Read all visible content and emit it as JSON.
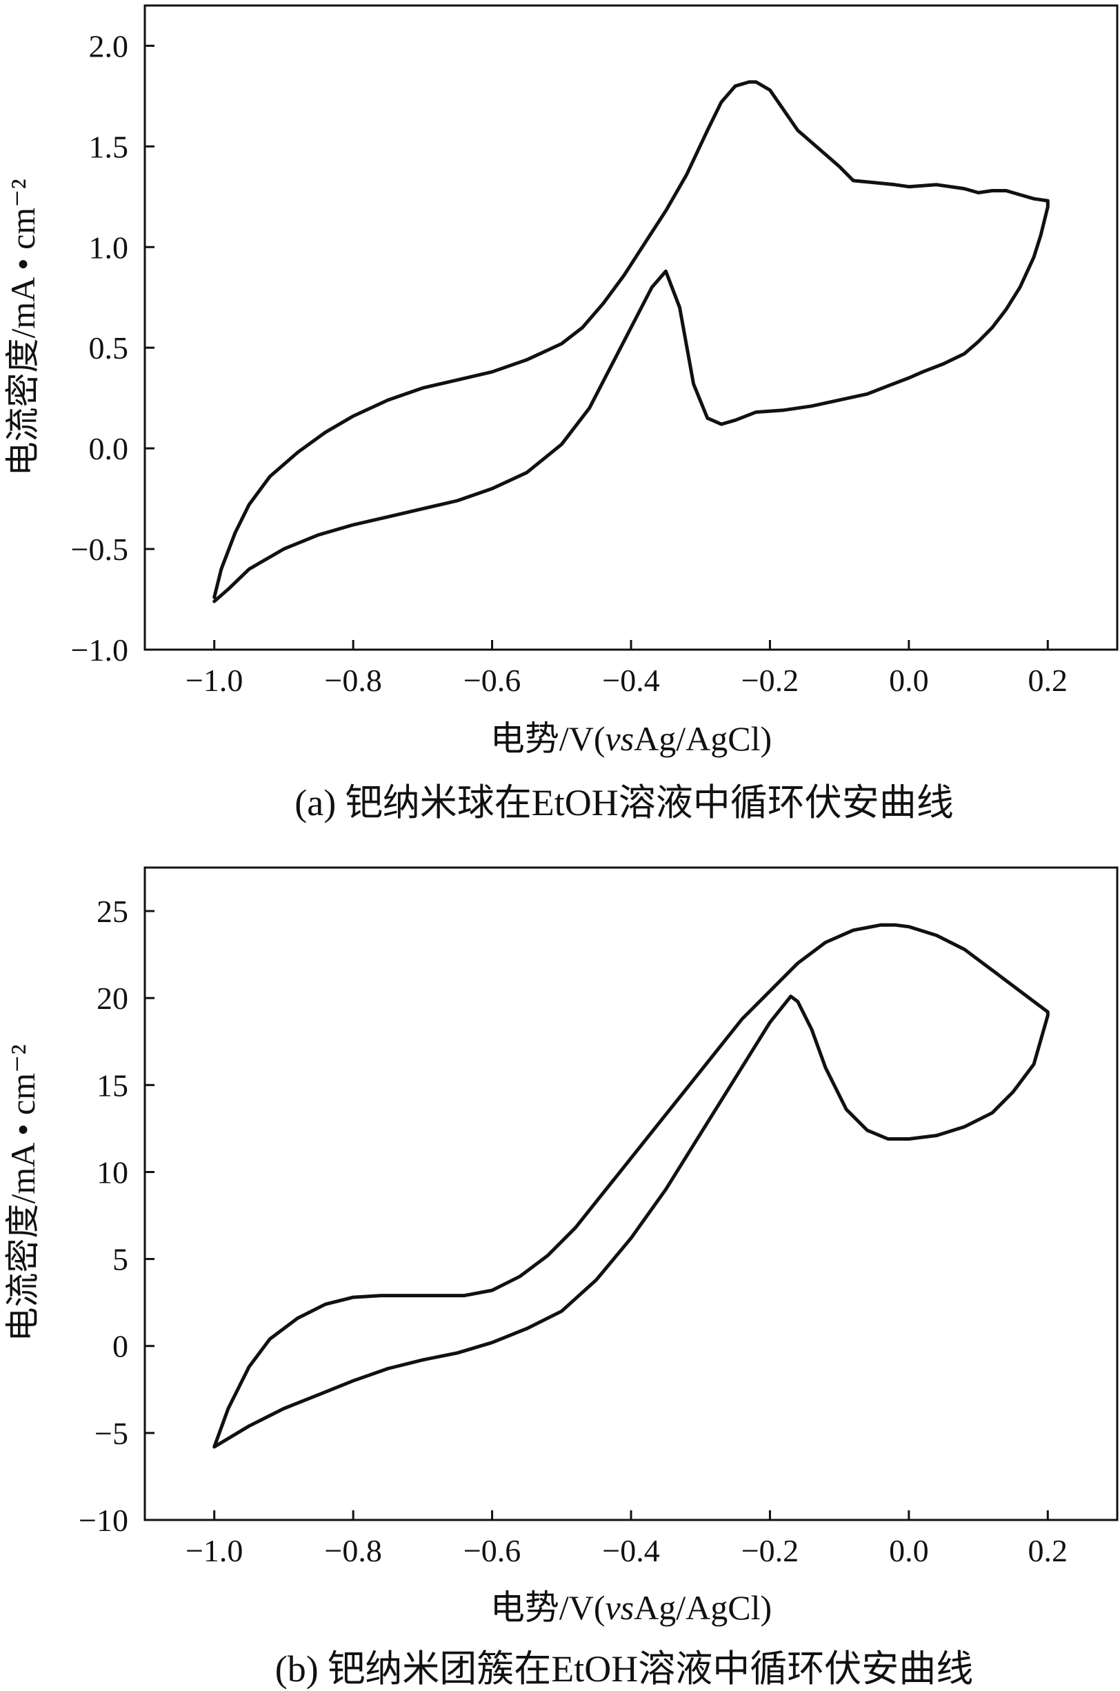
{
  "chart_data": [
    {
      "type": "line",
      "panel": "a",
      "caption": "(a) 钯纳米球在EtOH溶液中循环伏安曲线",
      "xlabel": "电势/V(vsAg/AgCl)",
      "xlabel_parts": [
        "电势/V(",
        "vs",
        "Ag/AgCl)"
      ],
      "ylabel": "电流密度/mA • cm⁻²",
      "xlim": [
        -1.1,
        0.3
      ],
      "ylim": [
        -1.0,
        2.2
      ],
      "xticks": [
        -1.0,
        -0.8,
        -0.6,
        -0.4,
        -0.2,
        0.0,
        0.2
      ],
      "xtick_labels": [
        "−1.0",
        "−0.8",
        "−0.6",
        "−0.4",
        "−0.2",
        "0.0",
        "0.2"
      ],
      "yticks": [
        -1.0,
        -0.5,
        0.0,
        0.5,
        1.0,
        1.5,
        2.0
      ],
      "ytick_labels": [
        "−1.0",
        "−0.5",
        "0.0",
        "0.5",
        "1.0",
        "1.5",
        "2.0"
      ],
      "grid": false,
      "series": [
        {
          "x": [
            -1.0,
            -0.99,
            -0.97,
            -0.95,
            -0.92,
            -0.88,
            -0.84,
            -0.8,
            -0.75,
            -0.7,
            -0.65,
            -0.6,
            -0.55,
            -0.5,
            -0.47,
            -0.44,
            -0.41,
            -0.38,
            -0.35,
            -0.32,
            -0.29,
            -0.27,
            -0.25,
            -0.23,
            -0.22,
            -0.2,
            -0.18,
            -0.16,
            -0.14,
            -0.12,
            -0.1,
            -0.08,
            -0.05,
            -0.02,
            0.0,
            0.04,
            0.08,
            0.1,
            0.12,
            0.14,
            0.16,
            0.18,
            0.2,
            0.2,
            0.19,
            0.18,
            0.16,
            0.14,
            0.12,
            0.1,
            0.08,
            0.05,
            0.02,
            0.0,
            -0.03,
            -0.06,
            -0.1,
            -0.14,
            -0.18,
            -0.22,
            -0.25,
            -0.27,
            -0.29,
            -0.31,
            -0.33,
            -0.35,
            -0.37,
            -0.4,
            -0.43,
            -0.46,
            -0.5,
            -0.55,
            -0.6,
            -0.65,
            -0.7,
            -0.75,
            -0.8,
            -0.85,
            -0.9,
            -0.95,
            -0.98,
            -1.0
          ],
          "y": [
            -0.74,
            -0.6,
            -0.42,
            -0.28,
            -0.14,
            -0.02,
            0.08,
            0.16,
            0.24,
            0.3,
            0.34,
            0.38,
            0.44,
            0.52,
            0.6,
            0.72,
            0.86,
            1.02,
            1.18,
            1.36,
            1.58,
            1.72,
            1.8,
            1.82,
            1.82,
            1.78,
            1.68,
            1.58,
            1.52,
            1.46,
            1.4,
            1.33,
            1.32,
            1.31,
            1.3,
            1.31,
            1.29,
            1.27,
            1.28,
            1.28,
            1.26,
            1.24,
            1.23,
            1.2,
            1.06,
            0.95,
            0.8,
            0.69,
            0.6,
            0.53,
            0.47,
            0.42,
            0.38,
            0.35,
            0.31,
            0.27,
            0.24,
            0.21,
            0.19,
            0.18,
            0.14,
            0.12,
            0.15,
            0.32,
            0.7,
            0.88,
            0.8,
            0.6,
            0.4,
            0.2,
            0.02,
            -0.12,
            -0.2,
            -0.26,
            -0.3,
            -0.34,
            -0.38,
            -0.43,
            -0.5,
            -0.6,
            -0.7,
            -0.76
          ]
        }
      ]
    },
    {
      "type": "line",
      "panel": "b",
      "caption": "(b) 钯纳米团簇在EtOH溶液中循环伏安曲线",
      "xlabel": "电势/V(vsAg/AgCl)",
      "xlabel_parts": [
        "电势/V(",
        "vs",
        "Ag/AgCl)"
      ],
      "ylabel": "电流密度/mA • cm⁻²",
      "xlim": [
        -1.1,
        0.3
      ],
      "ylim": [
        -10,
        27.5
      ],
      "xticks": [
        -1.0,
        -0.8,
        -0.6,
        -0.4,
        -0.2,
        0.0,
        0.2
      ],
      "xtick_labels": [
        "−1.0",
        "−0.8",
        "−0.6",
        "−0.4",
        "−0.2",
        "0.0",
        "0.2"
      ],
      "yticks": [
        -10,
        -5,
        0,
        5,
        10,
        15,
        20,
        25
      ],
      "ytick_labels": [
        "−10",
        "−5",
        "0",
        "5",
        "10",
        "15",
        "20",
        "25"
      ],
      "grid": false,
      "series": [
        {
          "x": [
            -1.0,
            -0.98,
            -0.95,
            -0.92,
            -0.88,
            -0.84,
            -0.8,
            -0.76,
            -0.72,
            -0.68,
            -0.64,
            -0.6,
            -0.56,
            -0.52,
            -0.48,
            -0.44,
            -0.4,
            -0.36,
            -0.32,
            -0.28,
            -0.24,
            -0.2,
            -0.16,
            -0.12,
            -0.08,
            -0.04,
            -0.02,
            0.0,
            0.04,
            0.08,
            0.12,
            0.16,
            0.2,
            0.2,
            0.18,
            0.15,
            0.12,
            0.08,
            0.04,
            0.0,
            -0.03,
            -0.06,
            -0.09,
            -0.12,
            -0.14,
            -0.16,
            -0.17,
            -0.2,
            -0.25,
            -0.3,
            -0.35,
            -0.4,
            -0.45,
            -0.5,
            -0.55,
            -0.6,
            -0.65,
            -0.7,
            -0.75,
            -0.8,
            -0.85,
            -0.9,
            -0.95,
            -1.0
          ],
          "y": [
            -5.8,
            -3.6,
            -1.2,
            0.4,
            1.6,
            2.4,
            2.8,
            2.9,
            2.9,
            2.9,
            2.9,
            3.2,
            4.0,
            5.2,
            6.8,
            8.8,
            10.8,
            12.8,
            14.8,
            16.8,
            18.8,
            20.4,
            22.0,
            23.2,
            23.9,
            24.2,
            24.2,
            24.1,
            23.6,
            22.8,
            21.6,
            20.4,
            19.2,
            19.0,
            16.2,
            14.6,
            13.4,
            12.6,
            12.1,
            11.9,
            11.9,
            12.4,
            13.6,
            16.0,
            18.2,
            19.8,
            20.1,
            18.6,
            15.4,
            12.2,
            9.0,
            6.2,
            3.8,
            2.0,
            1.0,
            0.2,
            -0.4,
            -0.8,
            -1.3,
            -2.0,
            -2.8,
            -3.6,
            -4.6,
            -5.8
          ]
        }
      ]
    }
  ]
}
